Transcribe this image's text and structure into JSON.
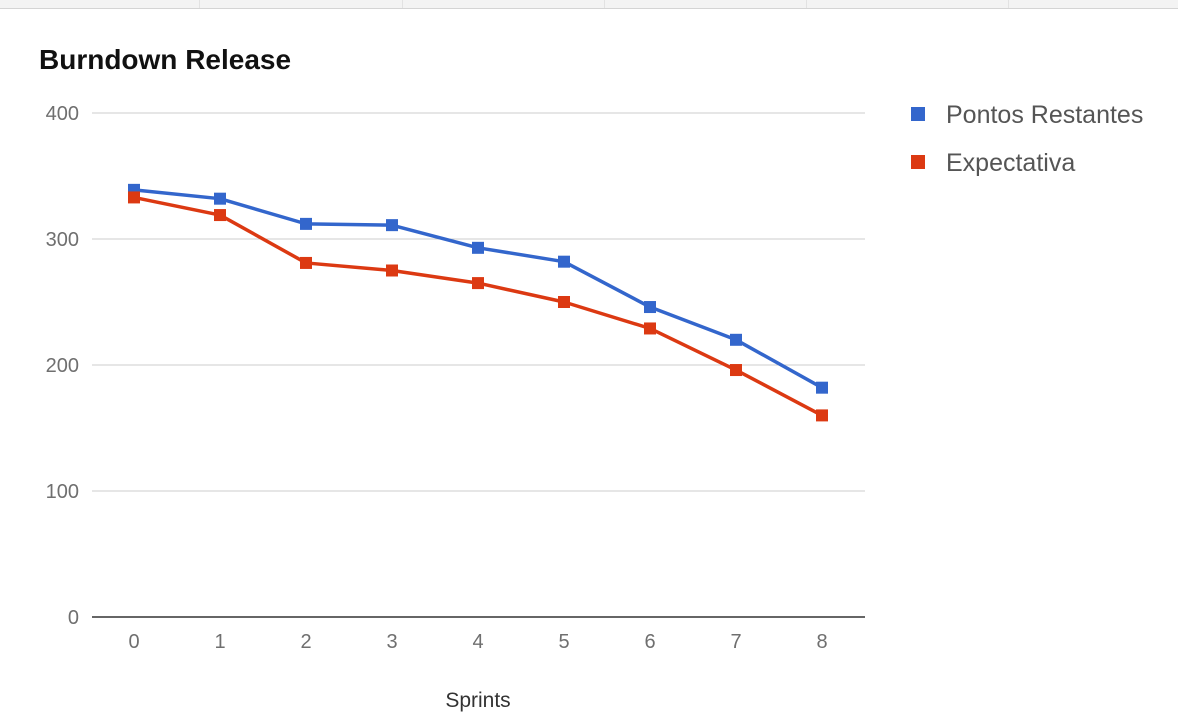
{
  "chart_data": {
    "type": "line",
    "title": "Burndown Release",
    "xlabel": "Sprints",
    "ylabel": "",
    "x": [
      "0",
      "1",
      "2",
      "3",
      "4",
      "5",
      "6",
      "7",
      "8"
    ],
    "ylim": [
      0,
      400
    ],
    "yticks": [
      "0",
      "100",
      "200",
      "300",
      "400"
    ],
    "grid": true,
    "legend_position": "right",
    "series": [
      {
        "name": "Pontos Restantes",
        "color": "#3366cc",
        "marker": "square",
        "values": [
          339,
          332,
          312,
          311,
          293,
          282,
          246,
          220,
          182
        ]
      },
      {
        "name": "Expectativa",
        "color": "#dc3912",
        "marker": "square",
        "values": [
          333,
          319,
          281,
          275,
          265,
          250,
          229,
          196,
          160
        ]
      }
    ]
  }
}
